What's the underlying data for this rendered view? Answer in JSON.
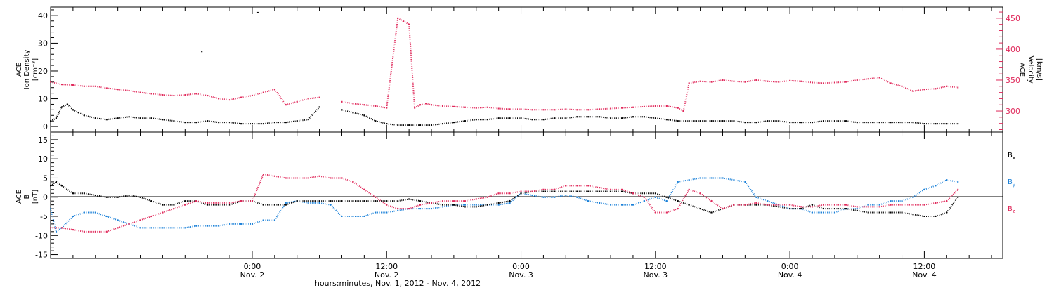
{
  "chart_data": [
    {
      "type": "scatter",
      "panel": "ACE plasma",
      "x_unit": "hours since Nov. 1, 2012 00:00",
      "xlim": [
        6,
        91
      ],
      "ylabel_left": [
        "ACE",
        "Ion Density",
        "[cm⁻³]"
      ],
      "ylabel_right": [
        "ACE",
        "Velocity",
        "[km/s]"
      ],
      "ylim_left": [
        -2,
        43
      ],
      "yticks_left": [
        0,
        10,
        20,
        30,
        40
      ],
      "ylim_right": [
        266,
        468
      ],
      "yticks_right": [
        300,
        350,
        400,
        450
      ],
      "colors": {
        "density": "#000000",
        "velocity": "#e0285a"
      },
      "series": [
        {
          "axis": "left",
          "x": [
            6.0,
            6.5,
            7.0,
            7.5,
            8.0,
            8.5,
            9.0,
            10.0,
            11.0,
            12.0,
            13.0,
            14.0,
            15.0,
            16.0,
            17.0,
            18.0,
            19.0,
            20.0,
            21.0,
            22.0,
            23.0,
            24.0,
            25.0,
            26.0,
            27.0,
            28.0,
            29.0,
            30.0,
            32.0,
            33.0,
            34.0,
            35.0,
            36.0,
            37.0,
            38.0,
            39.0,
            40.0,
            41.0,
            42.0,
            43.0,
            44.0,
            45.0,
            46.0,
            47.0,
            48.0,
            49.0,
            50.0,
            51.0,
            52.0,
            53.0,
            54.0,
            55.0,
            56.0,
            57.0,
            58.0,
            59.0,
            60.0,
            61.0,
            62.0,
            63.0,
            64.0,
            65.0,
            66.0,
            67.0,
            68.0,
            69.0,
            70.0,
            71.0,
            72.0,
            73.0,
            74.0,
            75.0,
            76.0,
            77.0,
            78.0,
            79.0,
            80.0,
            81.0,
            82.0,
            83.0,
            84.0,
            85.0,
            86.0,
            87.0
          ],
          "y": [
            2,
            3,
            7,
            8,
            6,
            5,
            4,
            3,
            2.5,
            3,
            3.5,
            3,
            3,
            2.5,
            2,
            1.5,
            1.5,
            2,
            1.5,
            1.5,
            1,
            1,
            1,
            1.5,
            1.5,
            2,
            2.5,
            7,
            6,
            5,
            4,
            2,
            1,
            0.5,
            0.5,
            0.5,
            0.5,
            1,
            1.5,
            2,
            2.5,
            2.5,
            3,
            3,
            3,
            2.5,
            2.5,
            3,
            3,
            3.5,
            3.5,
            3.5,
            3,
            3,
            3.5,
            3.5,
            3,
            2.5,
            2,
            2,
            2,
            2,
            2,
            2,
            1.5,
            1.5,
            2,
            2,
            1.5,
            1.5,
            1.5,
            2,
            2,
            2,
            1.5,
            1.5,
            1.5,
            1.5,
            1.5,
            1.5,
            1,
            1,
            1,
            1
          ]
        },
        {
          "axis": "right",
          "x": [
            6.0,
            7.0,
            8.0,
            9.0,
            10.0,
            11.0,
            12.0,
            13.0,
            14.0,
            15.0,
            16.0,
            17.0,
            18.0,
            19.0,
            20.0,
            21.0,
            22.0,
            23.0,
            24.0,
            25.0,
            26.0,
            27.0,
            28.0,
            29.0,
            30.0,
            32.0,
            33.0,
            34.0,
            35.0,
            36.0,
            37.0,
            37.5,
            38.0,
            38.5,
            39.0,
            39.5,
            40.0,
            41.0,
            42.0,
            43.0,
            44.0,
            45.0,
            46.0,
            47.0,
            48.0,
            49.0,
            50.0,
            51.0,
            52.0,
            53.0,
            54.0,
            55.0,
            56.0,
            57.0,
            58.0,
            59.0,
            60.0,
            61.0,
            62.0,
            62.5,
            63.0,
            64.0,
            65.0,
            66.0,
            67.0,
            68.0,
            69.0,
            70.0,
            71.0,
            72.0,
            73.0,
            74.0,
            75.0,
            76.0,
            77.0,
            78.0,
            79.0,
            80.0,
            81.0,
            82.0,
            83.0,
            84.0,
            85.0,
            86.0,
            87.0
          ],
          "y": [
            347,
            343,
            342,
            340,
            340,
            337,
            335,
            333,
            330,
            328,
            326,
            325,
            326,
            328,
            325,
            320,
            318,
            322,
            325,
            330,
            335,
            310,
            315,
            320,
            322,
            315,
            312,
            310,
            308,
            305,
            450,
            445,
            440,
            305,
            310,
            312,
            310,
            308,
            307,
            306,
            305,
            306,
            304,
            303,
            303,
            302,
            302,
            302,
            303,
            302,
            302,
            303,
            304,
            305,
            306,
            307,
            308,
            308,
            305,
            300,
            345,
            348,
            347,
            350,
            348,
            347,
            350,
            348,
            347,
            349,
            348,
            346,
            345,
            346,
            347,
            350,
            352,
            354,
            345,
            340,
            332,
            335,
            336,
            340,
            338
          ]
        }
      ],
      "isolated_points": [
        {
          "axis": "left",
          "x": 19.5,
          "y": 27
        },
        {
          "axis": "left",
          "x": 24.5,
          "y": 41
        }
      ]
    },
    {
      "type": "scatter",
      "panel": "ACE magnetic field",
      "x_unit": "hours since Nov. 1, 2012 00:00",
      "xlim": [
        6,
        91
      ],
      "ylabel": [
        "ACE",
        "B",
        "[nT]"
      ],
      "ylim": [
        -16,
        17
      ],
      "yticks": [
        -15,
        -10,
        -5,
        0,
        5,
        10,
        15
      ],
      "grid": false,
      "zero_line": true,
      "legend_position": "right",
      "series": [
        {
          "name": "Bx",
          "color": "#000000",
          "x": [
            6.0,
            6.5,
            7.0,
            8.0,
            9.0,
            10.0,
            11.0,
            12.0,
            13.0,
            14.0,
            15.0,
            16.0,
            17.0,
            18.0,
            19.0,
            20.0,
            21.0,
            22.0,
            23.0,
            24.0,
            25.0,
            26.0,
            27.0,
            28.0,
            29.0,
            30.0,
            31.0,
            32.0,
            33.0,
            34.0,
            35.0,
            36.0,
            37.0,
            38.0,
            39.0,
            40.0,
            41.0,
            42.0,
            43.0,
            44.0,
            45.0,
            46.0,
            47.0,
            48.0,
            49.0,
            50.0,
            51.0,
            52.0,
            53.0,
            54.0,
            55.0,
            56.0,
            57.0,
            58.0,
            59.0,
            60.0,
            61.0,
            62.0,
            63.0,
            64.0,
            65.0,
            66.0,
            67.0,
            68.0,
            69.0,
            70.0,
            71.0,
            72.0,
            73.0,
            74.0,
            75.0,
            76.0,
            77.0,
            78.0,
            79.0,
            80.0,
            81.0,
            82.0,
            83.0,
            84.0,
            85.0,
            86.0,
            87.0
          ],
          "y": [
            3,
            4,
            3,
            1,
            1,
            0.5,
            0,
            0,
            0.5,
            0,
            -1,
            -2,
            -2,
            -1,
            -1,
            -2,
            -2,
            -2,
            -1,
            -1,
            -2,
            -2,
            -2,
            -1,
            -1,
            -1,
            -1,
            -1,
            -1,
            -1,
            -1,
            -1,
            -1,
            -0.5,
            -1,
            -1.5,
            -2,
            -2,
            -2.5,
            -2.5,
            -2,
            -1.5,
            -1,
            1,
            1.5,
            1.5,
            1.5,
            1.5,
            1.5,
            1.5,
            1.5,
            1.5,
            1.5,
            1,
            1,
            1,
            0,
            -1,
            -2,
            -3,
            -4,
            -3,
            -2,
            -2,
            -2,
            -2,
            -2.5,
            -3,
            -3,
            -2,
            -3,
            -3,
            -3,
            -3.5,
            -4,
            -4,
            -4,
            -4,
            -4.5,
            -5,
            -5,
            -4,
            0
          ]
        },
        {
          "name": "By",
          "color": "#1a80d8",
          "x": [
            6.0,
            6.5,
            7.0,
            8.0,
            9.0,
            10.0,
            11.0,
            12.0,
            13.0,
            14.0,
            15.0,
            16.0,
            17.0,
            18.0,
            19.0,
            20.0,
            21.0,
            22.0,
            23.0,
            24.0,
            25.0,
            26.0,
            27.0,
            28.0,
            29.0,
            30.0,
            31.0,
            32.0,
            33.0,
            34.0,
            35.0,
            36.0,
            37.0,
            38.0,
            39.0,
            40.0,
            41.0,
            42.0,
            43.0,
            44.0,
            45.0,
            46.0,
            47.0,
            48.0,
            49.0,
            50.0,
            51.0,
            52.0,
            53.0,
            54.0,
            55.0,
            56.0,
            57.0,
            58.0,
            59.0,
            60.0,
            61.0,
            62.0,
            63.0,
            64.0,
            65.0,
            66.0,
            67.0,
            68.0,
            69.0,
            70.0,
            71.0,
            72.0,
            73.0,
            74.0,
            75.0,
            76.0,
            77.0,
            78.0,
            79.0,
            80.0,
            81.0,
            82.0,
            83.0,
            84.0,
            85.0,
            86.0,
            87.0
          ],
          "y": [
            -3,
            -9,
            -8,
            -5,
            -4,
            -4,
            -5,
            -6,
            -7,
            -8,
            -8,
            -8,
            -8,
            -8,
            -7.5,
            -7.5,
            -7.5,
            -7,
            -7,
            -7,
            -6,
            -6,
            -1.5,
            -1,
            -1.5,
            -1.5,
            -2,
            -5,
            -5,
            -5,
            -4,
            -4,
            -3.5,
            -3,
            -3,
            -3,
            -2.5,
            -2,
            -2,
            -2,
            -2,
            -2,
            -1.5,
            1,
            0.5,
            0,
            0,
            0.5,
            0,
            -1,
            -1.5,
            -2,
            -2,
            -2,
            -1,
            0,
            -1,
            4,
            4.5,
            5,
            5,
            5,
            4.5,
            4,
            0,
            -1,
            -2,
            -3,
            -3,
            -4,
            -4,
            -4,
            -3,
            -3,
            -2,
            -2,
            -1,
            -1,
            0,
            2,
            3,
            4.5,
            4
          ]
        },
        {
          "name": "Bz",
          "color": "#e0285a",
          "x": [
            6.0,
            6.5,
            7.0,
            8.0,
            9.0,
            10.0,
            11.0,
            12.0,
            13.0,
            14.0,
            15.0,
            16.0,
            17.0,
            18.0,
            19.0,
            20.0,
            21.0,
            22.0,
            23.0,
            24.0,
            25.0,
            26.0,
            27.0,
            28.0,
            29.0,
            30.0,
            31.0,
            32.0,
            33.0,
            34.0,
            35.0,
            36.0,
            37.0,
            38.0,
            39.0,
            40.0,
            41.0,
            42.0,
            43.0,
            44.0,
            45.0,
            46.0,
            47.0,
            48.0,
            49.0,
            50.0,
            51.0,
            52.0,
            53.0,
            54.0,
            55.0,
            56.0,
            57.0,
            58.0,
            59.0,
            60.0,
            61.0,
            62.0,
            63.0,
            64.0,
            65.0,
            66.0,
            67.0,
            68.0,
            69.0,
            70.0,
            71.0,
            72.0,
            73.0,
            74.0,
            75.0,
            76.0,
            77.0,
            78.0,
            79.0,
            80.0,
            81.0,
            82.0,
            83.0,
            84.0,
            85.0,
            86.0,
            87.0
          ],
          "y": [
            -8,
            -8,
            -8,
            -8.5,
            -9,
            -9,
            -9,
            -8,
            -7,
            -6,
            -5,
            -4,
            -3,
            -2,
            -1,
            -1.5,
            -1.5,
            -1.5,
            -1,
            -1,
            6,
            5.5,
            5,
            5,
            5,
            5.5,
            5,
            5,
            4,
            2,
            0,
            -2,
            -3,
            -3,
            -2,
            -1.5,
            -1,
            -1,
            -1,
            -0.5,
            0,
            1,
            1,
            1.5,
            1.5,
            2,
            2,
            3,
            3,
            3,
            2.5,
            2,
            2,
            1,
            0,
            -4,
            -4,
            -3,
            2,
            1,
            -1,
            -3,
            -2,
            -2,
            -1.5,
            -2,
            -2,
            -2,
            -2.5,
            -2.5,
            -2,
            -2,
            -2,
            -2.5,
            -2.5,
            -2.5,
            -2,
            -2,
            -2,
            -2,
            -1.5,
            -1,
            2
          ]
        }
      ]
    }
  ],
  "labels": {
    "density_axis": [
      "ACE",
      "Ion Density",
      "[cm⁻³]"
    ],
    "velocity_axis": [
      "ACE",
      "Velocity",
      "[km/s]"
    ],
    "field_axis": [
      "ACE",
      "B",
      "[nT]"
    ],
    "legend_bx": "B",
    "legend_bx_sub": "x",
    "legend_by": "B",
    "legend_by_sub": "y",
    "legend_bz": "B",
    "legend_bz_sub": "z"
  },
  "x_axis": {
    "label": "hours:minutes, Nov.  1, 2012 - Nov.  4, 2012",
    "tick_times": [
      "0:00",
      "12:00",
      "0:00",
      "12:00",
      "0:00",
      "12:00"
    ],
    "tick_days": [
      "Nov. 2",
      "Nov. 2",
      "Nov. 3",
      "Nov. 3",
      "Nov. 4",
      "Nov. 4"
    ],
    "tick_hours": [
      24,
      36,
      48,
      60,
      72,
      84
    ],
    "minor_tick_step_hours": 2
  }
}
